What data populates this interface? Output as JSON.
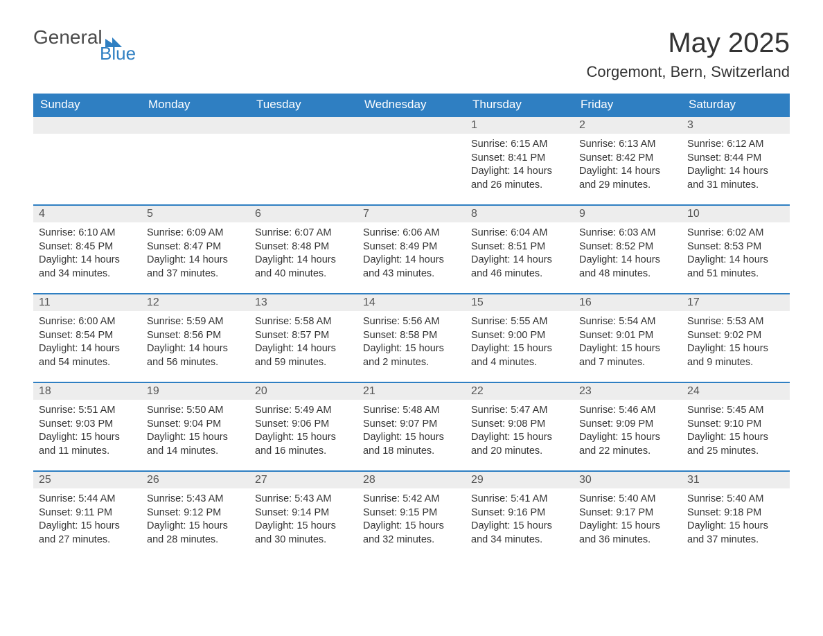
{
  "logo": {
    "text1": "General",
    "text2": "Blue",
    "accent_color": "#2f7fc2",
    "text_color": "#4a4a4a"
  },
  "title": "May 2025",
  "location": "Corgemont, Bern, Switzerland",
  "colors": {
    "header_bg": "#2f7fc2",
    "header_text": "#ffffff",
    "daynum_bg": "#ededed",
    "row_border": "#2f7fc2",
    "body_text": "#333333",
    "page_bg": "#ffffff"
  },
  "weekdays": [
    "Sunday",
    "Monday",
    "Tuesday",
    "Wednesday",
    "Thursday",
    "Friday",
    "Saturday"
  ],
  "first_weekday_index": 4,
  "days": [
    {
      "n": 1,
      "sunrise": "6:15 AM",
      "sunset": "8:41 PM",
      "daylight": "14 hours and 26 minutes."
    },
    {
      "n": 2,
      "sunrise": "6:13 AM",
      "sunset": "8:42 PM",
      "daylight": "14 hours and 29 minutes."
    },
    {
      "n": 3,
      "sunrise": "6:12 AM",
      "sunset": "8:44 PM",
      "daylight": "14 hours and 31 minutes."
    },
    {
      "n": 4,
      "sunrise": "6:10 AM",
      "sunset": "8:45 PM",
      "daylight": "14 hours and 34 minutes."
    },
    {
      "n": 5,
      "sunrise": "6:09 AM",
      "sunset": "8:47 PM",
      "daylight": "14 hours and 37 minutes."
    },
    {
      "n": 6,
      "sunrise": "6:07 AM",
      "sunset": "8:48 PM",
      "daylight": "14 hours and 40 minutes."
    },
    {
      "n": 7,
      "sunrise": "6:06 AM",
      "sunset": "8:49 PM",
      "daylight": "14 hours and 43 minutes."
    },
    {
      "n": 8,
      "sunrise": "6:04 AM",
      "sunset": "8:51 PM",
      "daylight": "14 hours and 46 minutes."
    },
    {
      "n": 9,
      "sunrise": "6:03 AM",
      "sunset": "8:52 PM",
      "daylight": "14 hours and 48 minutes."
    },
    {
      "n": 10,
      "sunrise": "6:02 AM",
      "sunset": "8:53 PM",
      "daylight": "14 hours and 51 minutes."
    },
    {
      "n": 11,
      "sunrise": "6:00 AM",
      "sunset": "8:54 PM",
      "daylight": "14 hours and 54 minutes."
    },
    {
      "n": 12,
      "sunrise": "5:59 AM",
      "sunset": "8:56 PM",
      "daylight": "14 hours and 56 minutes."
    },
    {
      "n": 13,
      "sunrise": "5:58 AM",
      "sunset": "8:57 PM",
      "daylight": "14 hours and 59 minutes."
    },
    {
      "n": 14,
      "sunrise": "5:56 AM",
      "sunset": "8:58 PM",
      "daylight": "15 hours and 2 minutes."
    },
    {
      "n": 15,
      "sunrise": "5:55 AM",
      "sunset": "9:00 PM",
      "daylight": "15 hours and 4 minutes."
    },
    {
      "n": 16,
      "sunrise": "5:54 AM",
      "sunset": "9:01 PM",
      "daylight": "15 hours and 7 minutes."
    },
    {
      "n": 17,
      "sunrise": "5:53 AM",
      "sunset": "9:02 PM",
      "daylight": "15 hours and 9 minutes."
    },
    {
      "n": 18,
      "sunrise": "5:51 AM",
      "sunset": "9:03 PM",
      "daylight": "15 hours and 11 minutes."
    },
    {
      "n": 19,
      "sunrise": "5:50 AM",
      "sunset": "9:04 PM",
      "daylight": "15 hours and 14 minutes."
    },
    {
      "n": 20,
      "sunrise": "5:49 AM",
      "sunset": "9:06 PM",
      "daylight": "15 hours and 16 minutes."
    },
    {
      "n": 21,
      "sunrise": "5:48 AM",
      "sunset": "9:07 PM",
      "daylight": "15 hours and 18 minutes."
    },
    {
      "n": 22,
      "sunrise": "5:47 AM",
      "sunset": "9:08 PM",
      "daylight": "15 hours and 20 minutes."
    },
    {
      "n": 23,
      "sunrise": "5:46 AM",
      "sunset": "9:09 PM",
      "daylight": "15 hours and 22 minutes."
    },
    {
      "n": 24,
      "sunrise": "5:45 AM",
      "sunset": "9:10 PM",
      "daylight": "15 hours and 25 minutes."
    },
    {
      "n": 25,
      "sunrise": "5:44 AM",
      "sunset": "9:11 PM",
      "daylight": "15 hours and 27 minutes."
    },
    {
      "n": 26,
      "sunrise": "5:43 AM",
      "sunset": "9:12 PM",
      "daylight": "15 hours and 28 minutes."
    },
    {
      "n": 27,
      "sunrise": "5:43 AM",
      "sunset": "9:14 PM",
      "daylight": "15 hours and 30 minutes."
    },
    {
      "n": 28,
      "sunrise": "5:42 AM",
      "sunset": "9:15 PM",
      "daylight": "15 hours and 32 minutes."
    },
    {
      "n": 29,
      "sunrise": "5:41 AM",
      "sunset": "9:16 PM",
      "daylight": "15 hours and 34 minutes."
    },
    {
      "n": 30,
      "sunrise": "5:40 AM",
      "sunset": "9:17 PM",
      "daylight": "15 hours and 36 minutes."
    },
    {
      "n": 31,
      "sunrise": "5:40 AM",
      "sunset": "9:18 PM",
      "daylight": "15 hours and 37 minutes."
    }
  ],
  "labels": {
    "sunrise": "Sunrise:",
    "sunset": "Sunset:",
    "daylight": "Daylight:"
  }
}
